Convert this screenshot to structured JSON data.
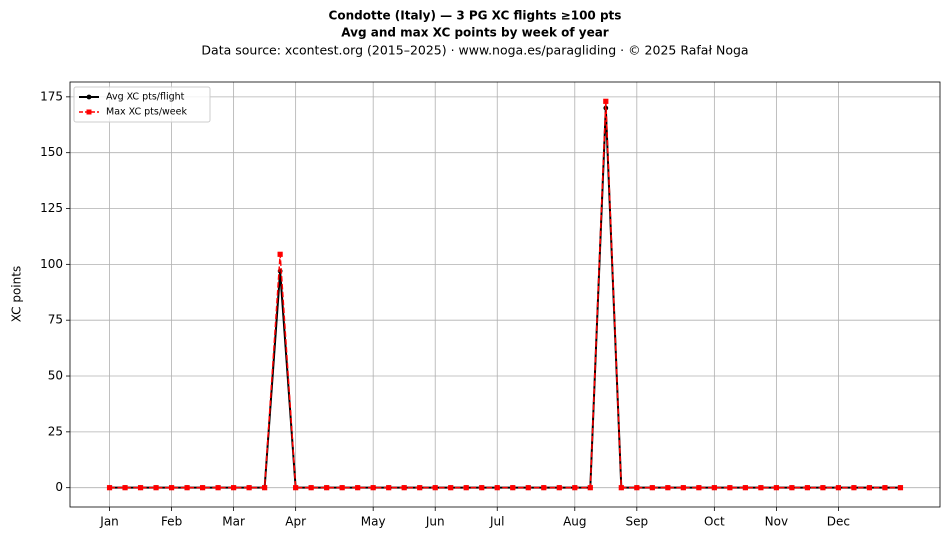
{
  "chart_data": {
    "type": "line",
    "title": "Condotte (Italy)  —  3 PG XC flights ≥100 pts",
    "subtitle": "Avg and max XC points by week of year",
    "caption": "Data source: xcontest.org (2015–2025)  ·  www.noga.es/paragliding  ·  © 2025 Rafał Noga",
    "y_label": "XC points",
    "x": [
      1,
      2,
      3,
      4,
      5,
      6,
      7,
      8,
      9,
      10,
      11,
      12,
      13,
      14,
      15,
      16,
      17,
      18,
      19,
      20,
      21,
      22,
      23,
      24,
      25,
      26,
      27,
      28,
      29,
      30,
      31,
      32,
      33,
      34,
      35,
      36,
      37,
      38,
      39,
      40,
      41,
      42,
      43,
      44,
      45,
      46,
      47,
      48,
      49,
      50,
      51,
      52
    ],
    "series": [
      {
        "name": "Avg XC pts/flight",
        "color": "#000000",
        "marker": "circle",
        "linestyle": "solid",
        "values": [
          0,
          0,
          0,
          0,
          0,
          0,
          0,
          0,
          0,
          0,
          0,
          97,
          0,
          0,
          0,
          0,
          0,
          0,
          0,
          0,
          0,
          0,
          0,
          0,
          0,
          0,
          0,
          0,
          0,
          0,
          0,
          0,
          170,
          0,
          0,
          0,
          0,
          0,
          0,
          0,
          0,
          0,
          0,
          0,
          0,
          0,
          0,
          0,
          0,
          0,
          0,
          0
        ]
      },
      {
        "name": "Max XC pts/week",
        "color": "#ff0000",
        "marker": "square",
        "linestyle": "dashed",
        "values": [
          0,
          0,
          0,
          0,
          0,
          0,
          0,
          0,
          0,
          0,
          0,
          104.5,
          0,
          0,
          0,
          0,
          0,
          0,
          0,
          0,
          0,
          0,
          0,
          0,
          0,
          0,
          0,
          0,
          0,
          0,
          0,
          0,
          173,
          0,
          0,
          0,
          0,
          0,
          0,
          0,
          0,
          0,
          0,
          0,
          0,
          0,
          0,
          0,
          0,
          0,
          0,
          0
        ]
      }
    ],
    "xlim": [
      -1.55,
      54.55
    ],
    "xticks": [
      {
        "value": 1,
        "label": "Jan"
      },
      {
        "value": 5,
        "label": "Feb"
      },
      {
        "value": 9,
        "label": "Mar"
      },
      {
        "value": 13,
        "label": "Apr"
      },
      {
        "value": 18,
        "label": "May"
      },
      {
        "value": 22,
        "label": "Jun"
      },
      {
        "value": 26,
        "label": "Jul"
      },
      {
        "value": 31,
        "label": "Aug"
      },
      {
        "value": 35,
        "label": "Sep"
      },
      {
        "value": 40,
        "label": "Oct"
      },
      {
        "value": 44,
        "label": "Nov"
      },
      {
        "value": 48,
        "label": "Dec"
      }
    ],
    "ylim": [
      -8.65,
      181.65
    ],
    "yticks": [
      0,
      25,
      50,
      75,
      100,
      125,
      150,
      175
    ],
    "grid": true,
    "legend": "upper left"
  }
}
